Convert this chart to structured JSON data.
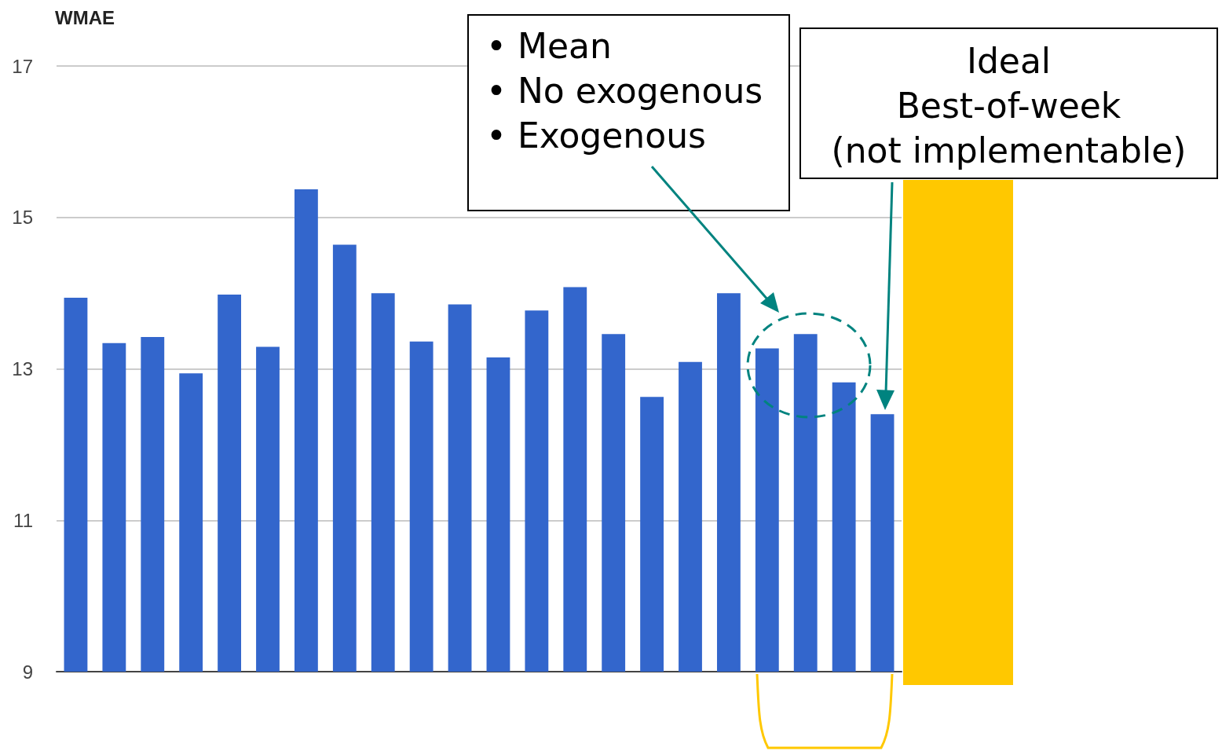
{
  "chart_data": {
    "type": "bar",
    "ylabel": "WMAE",
    "categories": [
      null,
      null,
      null,
      null,
      null,
      null,
      null,
      null,
      null,
      null,
      null,
      null,
      null,
      null,
      null,
      null,
      null,
      null,
      null,
      null,
      null,
      null
    ],
    "values": [
      13.94,
      13.34,
      13.42,
      12.94,
      13.98,
      13.29,
      15.37,
      14.64,
      14.0,
      13.36,
      13.85,
      13.15,
      13.77,
      14.08,
      13.46,
      12.63,
      13.09,
      14.0,
      13.27,
      13.46,
      12.82,
      12.4
    ],
    "color": "#3366cc",
    "ylim": [
      9,
      17
    ],
    "yticks": [
      9,
      11,
      13,
      15,
      17
    ],
    "grid": "y",
    "annotations": [
      "• Mean\n• No exogenous\n• Exogenous",
      "Ideal\nBest-of-week\n(not implementable)"
    ]
  }
}
